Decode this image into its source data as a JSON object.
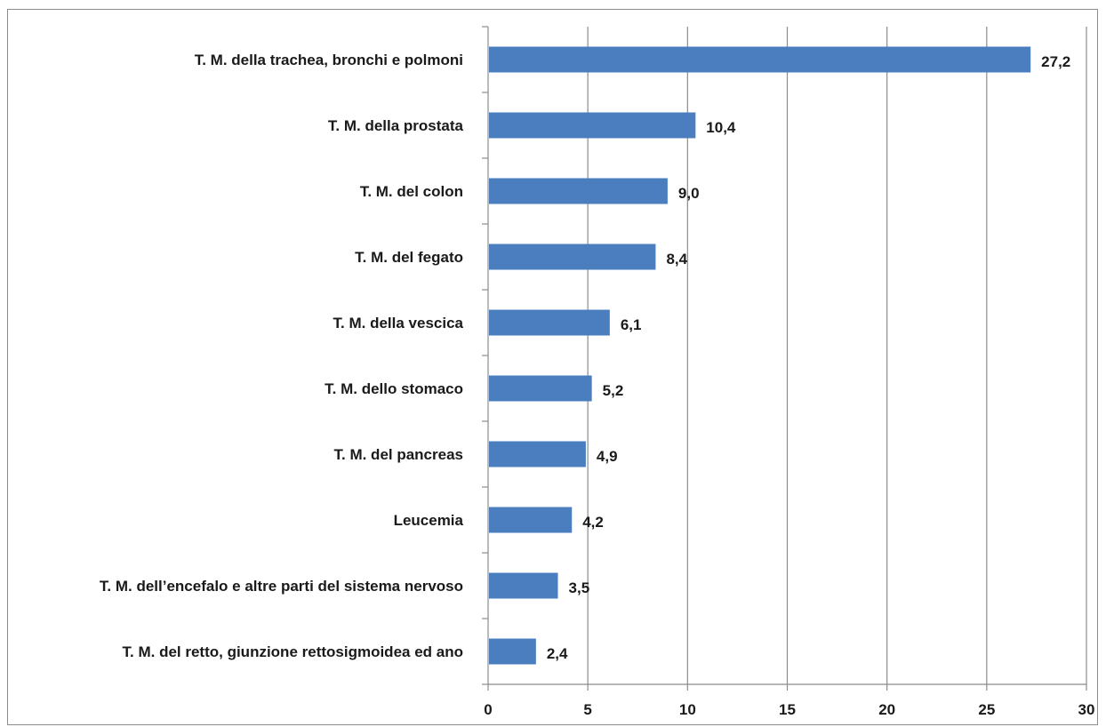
{
  "chart_data": {
    "type": "bar",
    "orientation": "horizontal",
    "categories": [
      "T. M. della trachea, bronchi e polmoni",
      "T. M. della prostata",
      "T. M. del colon",
      "T. M. del fegato",
      "T. M. della vescica",
      "T. M. dello stomaco",
      "T. M. del pancreas",
      "Leucemia",
      "T. M. dell’encefalo e altre parti del sistema nervoso",
      "T. M. del retto, giunzione rettosigmoidea ed ano"
    ],
    "values": [
      27.2,
      10.4,
      9.0,
      8.4,
      6.1,
      5.2,
      4.9,
      4.2,
      3.5,
      2.4
    ],
    "value_labels": [
      "27,2",
      "10,4",
      "9,0",
      "8,4",
      "6,1",
      "5,2",
      "4,9",
      "4,2",
      "3,5",
      "2,4"
    ],
    "x_ticks": [
      "0",
      "5",
      "10",
      "15",
      "20",
      "25",
      "30"
    ],
    "xlim": [
      0,
      30
    ],
    "title": "",
    "xlabel": "",
    "ylabel": "",
    "grid": "vertical",
    "legend": "none",
    "bar_color": "#4a7ebf",
    "grid_color": "#8c8c8c"
  }
}
